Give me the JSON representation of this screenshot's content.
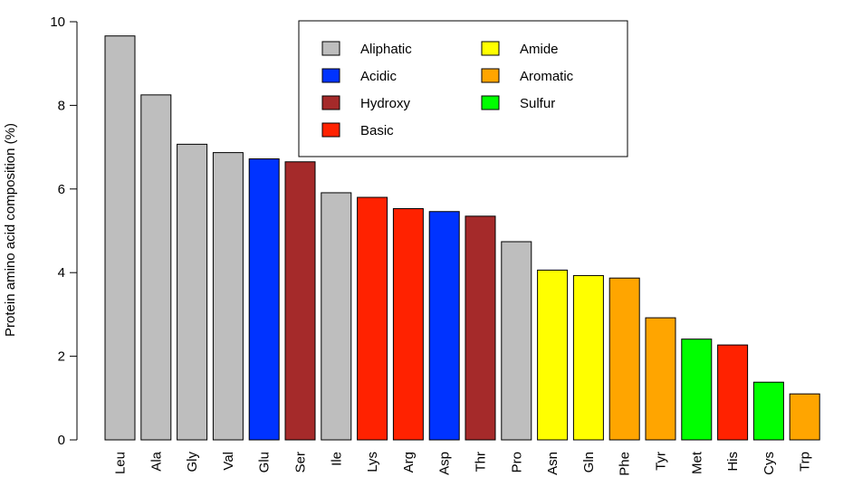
{
  "chart_data": {
    "type": "bar",
    "ylabel": "Protein amino acid composition (%)",
    "xlabel": "",
    "title": "",
    "ylim": [
      0,
      10
    ],
    "yticks": [
      0,
      2,
      4,
      6,
      8,
      10
    ],
    "grid": false,
    "legend_position": "top-center",
    "categories": [
      "Leu",
      "Ala",
      "Gly",
      "Val",
      "Glu",
      "Ser",
      "Ile",
      "Lys",
      "Arg",
      "Asp",
      "Thr",
      "Pro",
      "Asn",
      "Gln",
      "Phe",
      "Tyr",
      "Met",
      "His",
      "Cys",
      "Trp"
    ],
    "values": [
      9.66,
      8.25,
      7.07,
      6.87,
      6.72,
      6.65,
      5.91,
      5.8,
      5.53,
      5.46,
      5.35,
      4.74,
      4.06,
      3.93,
      3.87,
      2.92,
      2.41,
      2.27,
      1.38,
      1.1
    ],
    "groups": [
      "Aliphatic",
      "Aliphatic",
      "Aliphatic",
      "Aliphatic",
      "Acidic",
      "Hydroxy",
      "Aliphatic",
      "Basic",
      "Basic",
      "Acidic",
      "Hydroxy",
      "Aliphatic",
      "Amide",
      "Amide",
      "Aromatic",
      "Aromatic",
      "Sulfur",
      "Basic",
      "Sulfur",
      "Aromatic"
    ],
    "legend": [
      {
        "name": "Aliphatic",
        "color": "#bebebe"
      },
      {
        "name": "Acidic",
        "color": "#0033ff"
      },
      {
        "name": "Hydroxy",
        "color": "#a52a2a"
      },
      {
        "name": "Basic",
        "color": "#ff2200"
      },
      {
        "name": "Amide",
        "color": "#ffff00"
      },
      {
        "name": "Aromatic",
        "color": "#ffa500"
      },
      {
        "name": "Sulfur",
        "color": "#00ff00"
      }
    ]
  }
}
